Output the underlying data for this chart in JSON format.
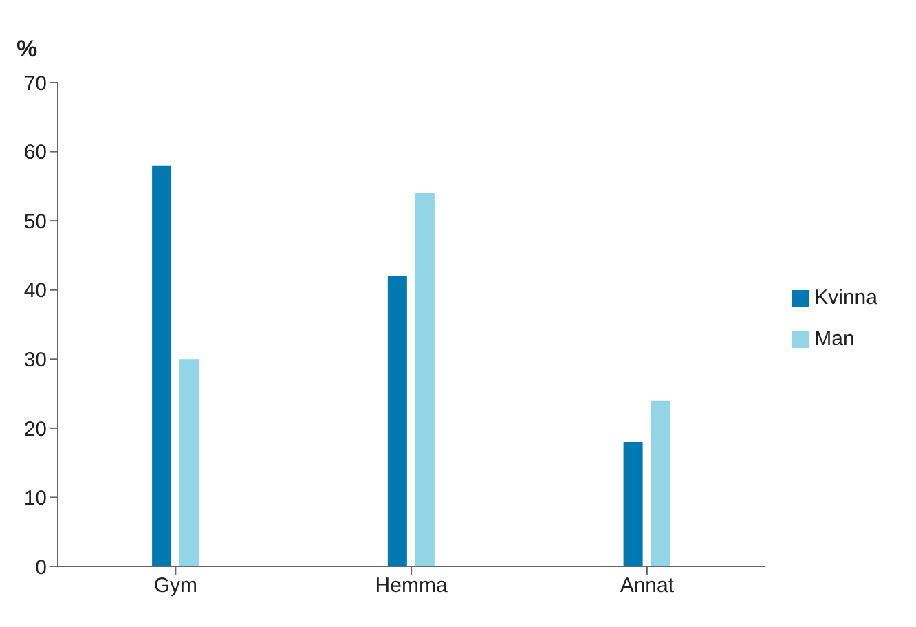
{
  "chart_data": {
    "type": "bar",
    "ylabel": "%",
    "categories": [
      "Gym",
      "Hemma",
      "Annat"
    ],
    "series": [
      {
        "name": "Kvinna",
        "color": "#0079b3",
        "values": [
          58,
          42,
          18
        ]
      },
      {
        "name": "Man",
        "color": "#91d5e6",
        "values": [
          30,
          54,
          24
        ]
      }
    ],
    "ylim": [
      0,
      70
    ],
    "yticks": [
      0,
      10,
      20,
      30,
      40,
      50,
      60,
      70
    ],
    "grid": false,
    "legend": "right"
  }
}
